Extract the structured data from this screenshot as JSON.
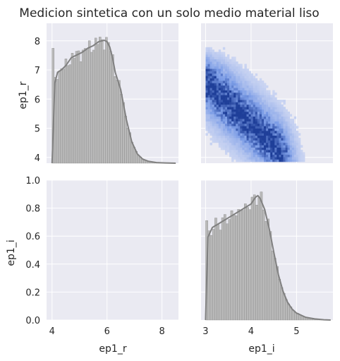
{
  "title": "Medicion sintetica con un solo medio material liso",
  "colors": {
    "panel_bg": "#eaeaf2",
    "grid": "#ffffff",
    "hist_fill": "#b9b9b9",
    "hist_edge": "#8a8a8a",
    "kde_line": "#808080",
    "density_light": "#d2daf3",
    "density_mid": "#7b9ce6",
    "density_dark": "#1f3f99"
  },
  "chart_data": [
    {
      "panel": "top-left",
      "type": "histogram",
      "variable": "ep1_r",
      "xlabel": "",
      "ylabel": "ep1_r",
      "xlim": [
        3.8,
        8.6
      ],
      "ylim": [
        3.8,
        8.6
      ],
      "yticks": [
        "4",
        "5",
        "6",
        "7",
        "8"
      ],
      "kde_x": [
        4.0,
        4.1,
        4.2,
        4.35,
        4.5,
        4.7,
        4.9,
        5.1,
        5.3,
        5.5,
        5.7,
        5.9,
        6.0,
        6.1,
        6.2,
        6.3,
        6.5,
        6.7,
        6.9,
        7.1,
        7.3,
        7.5,
        7.8,
        8.1,
        8.5
      ],
      "kde_density": [
        0.0,
        0.6,
        0.68,
        0.7,
        0.73,
        0.79,
        0.81,
        0.83,
        0.86,
        0.88,
        0.91,
        0.92,
        0.91,
        0.87,
        0.79,
        0.68,
        0.55,
        0.33,
        0.16,
        0.07,
        0.03,
        0.015,
        0.005,
        0.002,
        0.0
      ]
    },
    {
      "panel": "top-right",
      "type": "heatmap",
      "x_variable": "ep1_i",
      "y_variable": "ep1_r",
      "xlim": [
        2.9,
        5.8
      ],
      "ylim": [
        3.8,
        8.6
      ],
      "trend": "negative correlation: high ep1_r at low ep1_i, dense band from (3.0, 6.5) to (4.8, 4.0)"
    },
    {
      "panel": "bottom-left",
      "type": "empty",
      "xlabel": "ep1_r",
      "ylabel": "ep1_i",
      "xlim": [
        3.8,
        8.6
      ],
      "ylim": [
        0.0,
        1.0
      ],
      "xticks": [
        "4",
        "6",
        "8"
      ],
      "yticks": [
        "0.0",
        "0.2",
        "0.4",
        "0.6",
        "0.8",
        "1.0"
      ]
    },
    {
      "panel": "bottom-right",
      "type": "histogram",
      "variable": "ep1_i",
      "xlabel": "ep1_i",
      "ylabel": "",
      "xlim": [
        2.9,
        5.8
      ],
      "xticks": [
        "3",
        "4",
        "5"
      ],
      "kde_x": [
        3.0,
        3.05,
        3.15,
        3.3,
        3.5,
        3.7,
        3.9,
        4.0,
        4.1,
        4.15,
        4.2,
        4.3,
        4.4,
        4.5,
        4.6,
        4.7,
        4.8,
        4.9,
        5.0,
        5.2,
        5.4,
        5.6,
        5.75
      ],
      "kde_density": [
        0.0,
        0.6,
        0.67,
        0.7,
        0.74,
        0.78,
        0.82,
        0.84,
        0.89,
        0.9,
        0.88,
        0.8,
        0.66,
        0.49,
        0.33,
        0.21,
        0.13,
        0.08,
        0.05,
        0.02,
        0.008,
        0.002,
        0.0
      ]
    }
  ]
}
